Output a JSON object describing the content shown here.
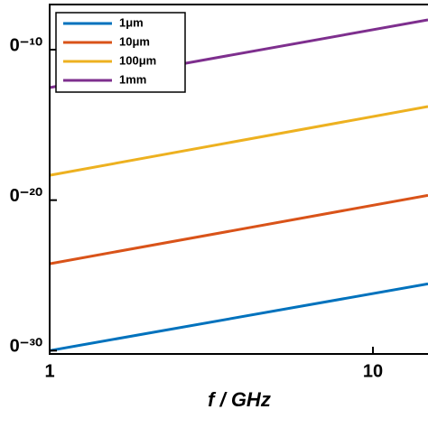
{
  "chart_data": {
    "type": "line",
    "xlabel": "f / GHz",
    "xscale": "log",
    "yscale": "log",
    "xlim": [
      1,
      14.8
    ],
    "xticks": [
      1,
      10
    ],
    "ylim": [
      6e-31,
      1e-07
    ],
    "yticks": [
      {
        "value": 1e-30,
        "label": "0⁻³⁰"
      },
      {
        "value": 1e-20,
        "label": "0⁻²⁰"
      },
      {
        "value": 1e-10,
        "label": "0⁻¹⁰"
      }
    ],
    "legend": "upper left",
    "x": [
      1,
      14.8
    ],
    "series": [
      {
        "name": "1μm",
        "color": "#0072bd",
        "values": [
          1e-30,
          2.75e-26
        ]
      },
      {
        "name": "10μm",
        "color": "#d95319",
        "values": [
          5.9e-25,
          2.1e-20
        ]
      },
      {
        "name": "100μm",
        "color": "#edb120",
        "values": [
          4.5e-19,
          1.66e-14
        ]
      },
      {
        "name": "1mm",
        "color": "#7e2f8e",
        "values": [
          3e-13,
          9.5e-09
        ]
      }
    ]
  }
}
